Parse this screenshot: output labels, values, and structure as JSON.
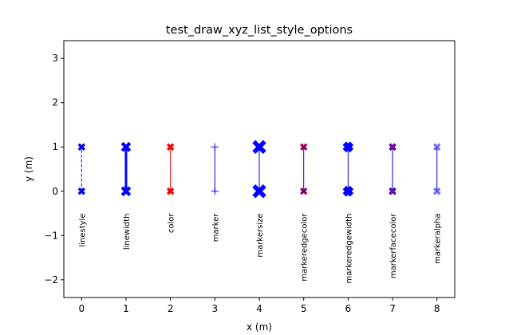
{
  "chart_data": {
    "type": "line",
    "title": "test_draw_xyz_list_style_options",
    "xlabel": "x (m)",
    "ylabel": "y (m)",
    "xlim": [
      -0.4,
      8.4
    ],
    "ylim": [
      -2.4,
      3.4
    ],
    "xticks": [
      "0",
      "1",
      "2",
      "3",
      "4",
      "5",
      "6",
      "7",
      "8"
    ],
    "yticks": [
      "−2",
      "−1",
      "0",
      "1",
      "2",
      "3"
    ],
    "ytick_values": [
      -2,
      -1,
      0,
      1,
      2,
      3
    ],
    "grid": false,
    "series": [
      {
        "x": [
          0,
          0
        ],
        "y": [
          0,
          1
        ],
        "annotation": "linestyle",
        "color": "#0000ff",
        "linestyle": "dashed",
        "linewidth": 1,
        "marker": "X",
        "markersize": 1,
        "markeredgecolor": "#0000ff",
        "markeredgewidth": 1,
        "markerfacecolor": "#0000ff",
        "markeralpha": 1
      },
      {
        "x": [
          1,
          1
        ],
        "y": [
          0,
          1
        ],
        "annotation": "linewidth",
        "color": "#0000ff",
        "linestyle": "solid",
        "linewidth": 3,
        "marker": "X",
        "markersize": 1.4,
        "markeredgecolor": "#0000ff",
        "markeredgewidth": 1,
        "markerfacecolor": "#0000ff",
        "markeralpha": 1
      },
      {
        "x": [
          2,
          2
        ],
        "y": [
          0,
          1
        ],
        "annotation": "color",
        "color": "#ff0000",
        "linestyle": "solid",
        "linewidth": 1,
        "marker": "X",
        "markersize": 1,
        "markeredgecolor": "#ff0000",
        "markeredgewidth": 1,
        "markerfacecolor": "#ff0000",
        "markeralpha": 1
      },
      {
        "x": [
          3,
          3
        ],
        "y": [
          0,
          1
        ],
        "annotation": "marker",
        "color": "#0000ff",
        "linestyle": "solid",
        "linewidth": 1,
        "marker": "+",
        "markersize": 1,
        "markeredgecolor": "#0000ff",
        "markeredgewidth": 1,
        "markerfacecolor": "#0000ff",
        "markeralpha": 1
      },
      {
        "x": [
          4,
          4
        ],
        "y": [
          0,
          1
        ],
        "annotation": "markersize",
        "color": "#0000ff",
        "linestyle": "solid",
        "linewidth": 1,
        "marker": "X",
        "markersize": 2,
        "markeredgecolor": "#0000ff",
        "markeredgewidth": 1,
        "markerfacecolor": "#0000ff",
        "markeralpha": 1
      },
      {
        "x": [
          5,
          5
        ],
        "y": [
          0,
          1
        ],
        "annotation": "markeredgecolor",
        "color": "#0000ff",
        "linestyle": "solid",
        "linewidth": 1,
        "marker": "X",
        "markersize": 1,
        "markeredgecolor": "#ff0000",
        "markeredgewidth": 1,
        "markerfacecolor": "#0000ff",
        "markeralpha": 1
      },
      {
        "x": [
          6,
          6
        ],
        "y": [
          0,
          1
        ],
        "annotation": "markeredgewidth",
        "color": "#0000ff",
        "linestyle": "solid",
        "linewidth": 1,
        "marker": "X",
        "markersize": 1,
        "markeredgecolor": "#0000ff",
        "markeredgewidth": 4,
        "markerfacecolor": "#0000ff",
        "markeralpha": 1
      },
      {
        "x": [
          7,
          7
        ],
        "y": [
          0,
          1
        ],
        "annotation": "markerfacecolor",
        "color": "#0000ff",
        "linestyle": "solid",
        "linewidth": 1,
        "marker": "X",
        "markersize": 1,
        "markeredgecolor": "#0000ff",
        "markeredgewidth": 1,
        "markerfacecolor": "#ff0000",
        "markeralpha": 1
      },
      {
        "x": [
          8,
          8
        ],
        "y": [
          0,
          1
        ],
        "annotation": "markeralpha",
        "color": "#0000ff",
        "linestyle": "solid",
        "linewidth": 1,
        "marker": "X",
        "markersize": 1,
        "markeredgecolor": "#0000ff",
        "markeredgewidth": 1,
        "markerfacecolor": "#0000ff",
        "markeralpha": 0.55
      }
    ],
    "annotation_y": -0.5
  }
}
